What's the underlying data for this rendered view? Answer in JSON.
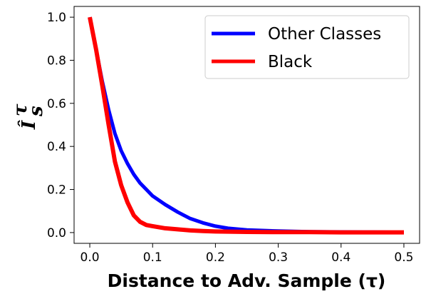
{
  "chart_data": {
    "type": "line",
    "xlabel": "Distance to Adv. Sample (τ)",
    "ylabel": "Î",
    "ylabel_superscript": "τ",
    "ylabel_subscript": "s",
    "xlim": [
      -0.025,
      0.525
    ],
    "ylim": [
      -0.05,
      1.05
    ],
    "xticks": [
      0.0,
      0.1,
      0.2,
      0.3,
      0.4,
      0.5
    ],
    "xtick_labels": [
      "0.0",
      "0.1",
      "0.2",
      "0.3",
      "0.4",
      "0.5"
    ],
    "yticks": [
      0.0,
      0.2,
      0.4,
      0.6,
      0.8,
      1.0
    ],
    "ytick_labels": [
      "0.0",
      "0.2",
      "0.4",
      "0.6",
      "0.8",
      "1.0"
    ],
    "grid": false,
    "legend_position": "top-right",
    "series": [
      {
        "name": "Other Classes",
        "color": "#0000ff",
        "x": [
          0.0,
          0.01,
          0.02,
          0.03,
          0.04,
          0.05,
          0.06,
          0.07,
          0.08,
          0.09,
          0.1,
          0.12,
          0.14,
          0.16,
          0.18,
          0.2,
          0.22,
          0.25,
          0.3,
          0.35,
          0.4,
          0.45,
          0.5
        ],
        "y": [
          1.0,
          0.85,
          0.7,
          0.57,
          0.46,
          0.38,
          0.32,
          0.27,
          0.23,
          0.2,
          0.17,
          0.13,
          0.095,
          0.065,
          0.045,
          0.03,
          0.02,
          0.012,
          0.007,
          0.004,
          0.003,
          0.002,
          0.001
        ]
      },
      {
        "name": "Black",
        "color": "#ff0000",
        "x": [
          0.0,
          0.01,
          0.02,
          0.03,
          0.04,
          0.05,
          0.06,
          0.07,
          0.08,
          0.09,
          0.1,
          0.12,
          0.14,
          0.16,
          0.18,
          0.2,
          0.25,
          0.3,
          0.35,
          0.4,
          0.45,
          0.5
        ],
        "y": [
          1.0,
          0.85,
          0.68,
          0.5,
          0.33,
          0.22,
          0.14,
          0.08,
          0.05,
          0.035,
          0.03,
          0.02,
          0.015,
          0.01,
          0.007,
          0.005,
          0.003,
          0.002,
          0.002,
          0.001,
          0.001,
          0.001
        ]
      }
    ]
  }
}
